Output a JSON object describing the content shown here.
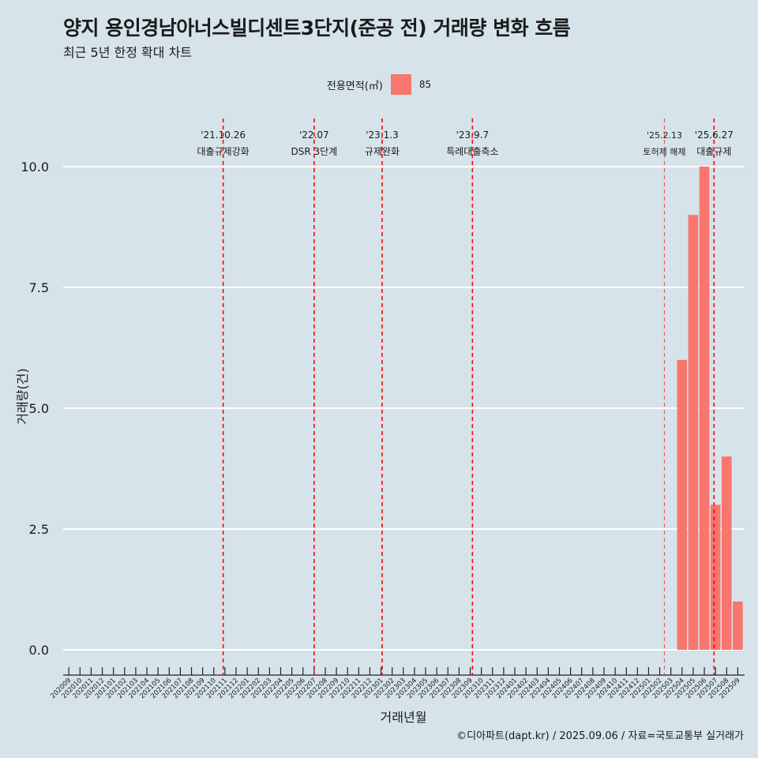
{
  "title": "양지 용인경남아너스빌디센트3단지(준공 전) 거래량 변화 흐름",
  "subtitle": "최근 5년 한정 확대 차트",
  "caption": "©디아파트(dapt.kr) / 2025.09.06 / 자료=국토교통부 실거래가",
  "colors": {
    "background": "#d6e3ea",
    "bar": "#f8766d",
    "event_line": "#ff0000",
    "grid": "#ffffff"
  },
  "chart_data": {
    "type": "bar",
    "title": "양지 용인경남아너스빌디센트3단지(준공 전) 거래량 변화 흐름",
    "xlabel": "거래년월",
    "ylabel": "거래량(건)",
    "ylim": [
      0,
      10
    ],
    "yticks": [
      "0.0",
      "2.5",
      "5.0",
      "7.5",
      "10.0"
    ],
    "grid": true,
    "legend": {
      "title": "전용면적(㎡)",
      "position": "top",
      "entries": [
        "85"
      ]
    },
    "categories": [
      "202009",
      "202010",
      "202011",
      "202012",
      "202101",
      "202102",
      "202103",
      "202104",
      "202105",
      "202106",
      "202107",
      "202108",
      "202109",
      "202110",
      "202111",
      "202112",
      "202201",
      "202202",
      "202203",
      "202204",
      "202205",
      "202206",
      "202207",
      "202208",
      "202209",
      "202210",
      "202211",
      "202212",
      "202301",
      "202302",
      "202303",
      "202304",
      "202305",
      "202306",
      "202307",
      "202308",
      "202309",
      "202310",
      "202311",
      "202312",
      "202401",
      "202402",
      "202403",
      "202404",
      "202405",
      "202406",
      "202407",
      "202408",
      "202409",
      "202410",
      "202411",
      "202412",
      "202501",
      "202502",
      "202503",
      "202504",
      "202505",
      "202506",
      "202507",
      "202508",
      "202509"
    ],
    "series": [
      {
        "name": "85",
        "values": [
          0,
          0,
          0,
          0,
          0,
          0,
          0,
          0,
          0,
          0,
          0,
          0,
          0,
          0,
          0,
          0,
          0,
          0,
          0,
          0,
          0,
          0,
          0,
          0,
          0,
          0,
          0,
          0,
          0,
          0,
          0,
          0,
          0,
          0,
          0,
          0,
          0,
          0,
          0,
          0,
          0,
          0,
          0,
          0,
          0,
          0,
          0,
          0,
          0,
          0,
          0,
          0,
          0,
          0,
          0,
          6,
          9,
          10,
          3,
          4,
          1
        ]
      }
    ],
    "events": [
      {
        "date": "'21.10.26",
        "label": "대출규제강화",
        "month": "202110",
        "offset": 0.84,
        "style": "dashed"
      },
      {
        "date": "'22.07",
        "label": "DSR 3단계",
        "month": "202207",
        "offset": 0.0,
        "style": "dashed"
      },
      {
        "date": "'23.1.3",
        "label": "규제완화",
        "month": "202301",
        "offset": 0.1,
        "style": "dashed"
      },
      {
        "date": "'23.9.7",
        "label": "특례대출축소",
        "month": "202309",
        "offset": 0.2,
        "style": "dashed"
      },
      {
        "date": "'25.2.13",
        "label": "토허제 해제",
        "month": "202502",
        "offset": 0.42,
        "style": "light"
      },
      {
        "date": "'25.6.27",
        "label": "대출규제",
        "month": "202506",
        "offset": 0.87,
        "style": "dashed"
      }
    ]
  }
}
